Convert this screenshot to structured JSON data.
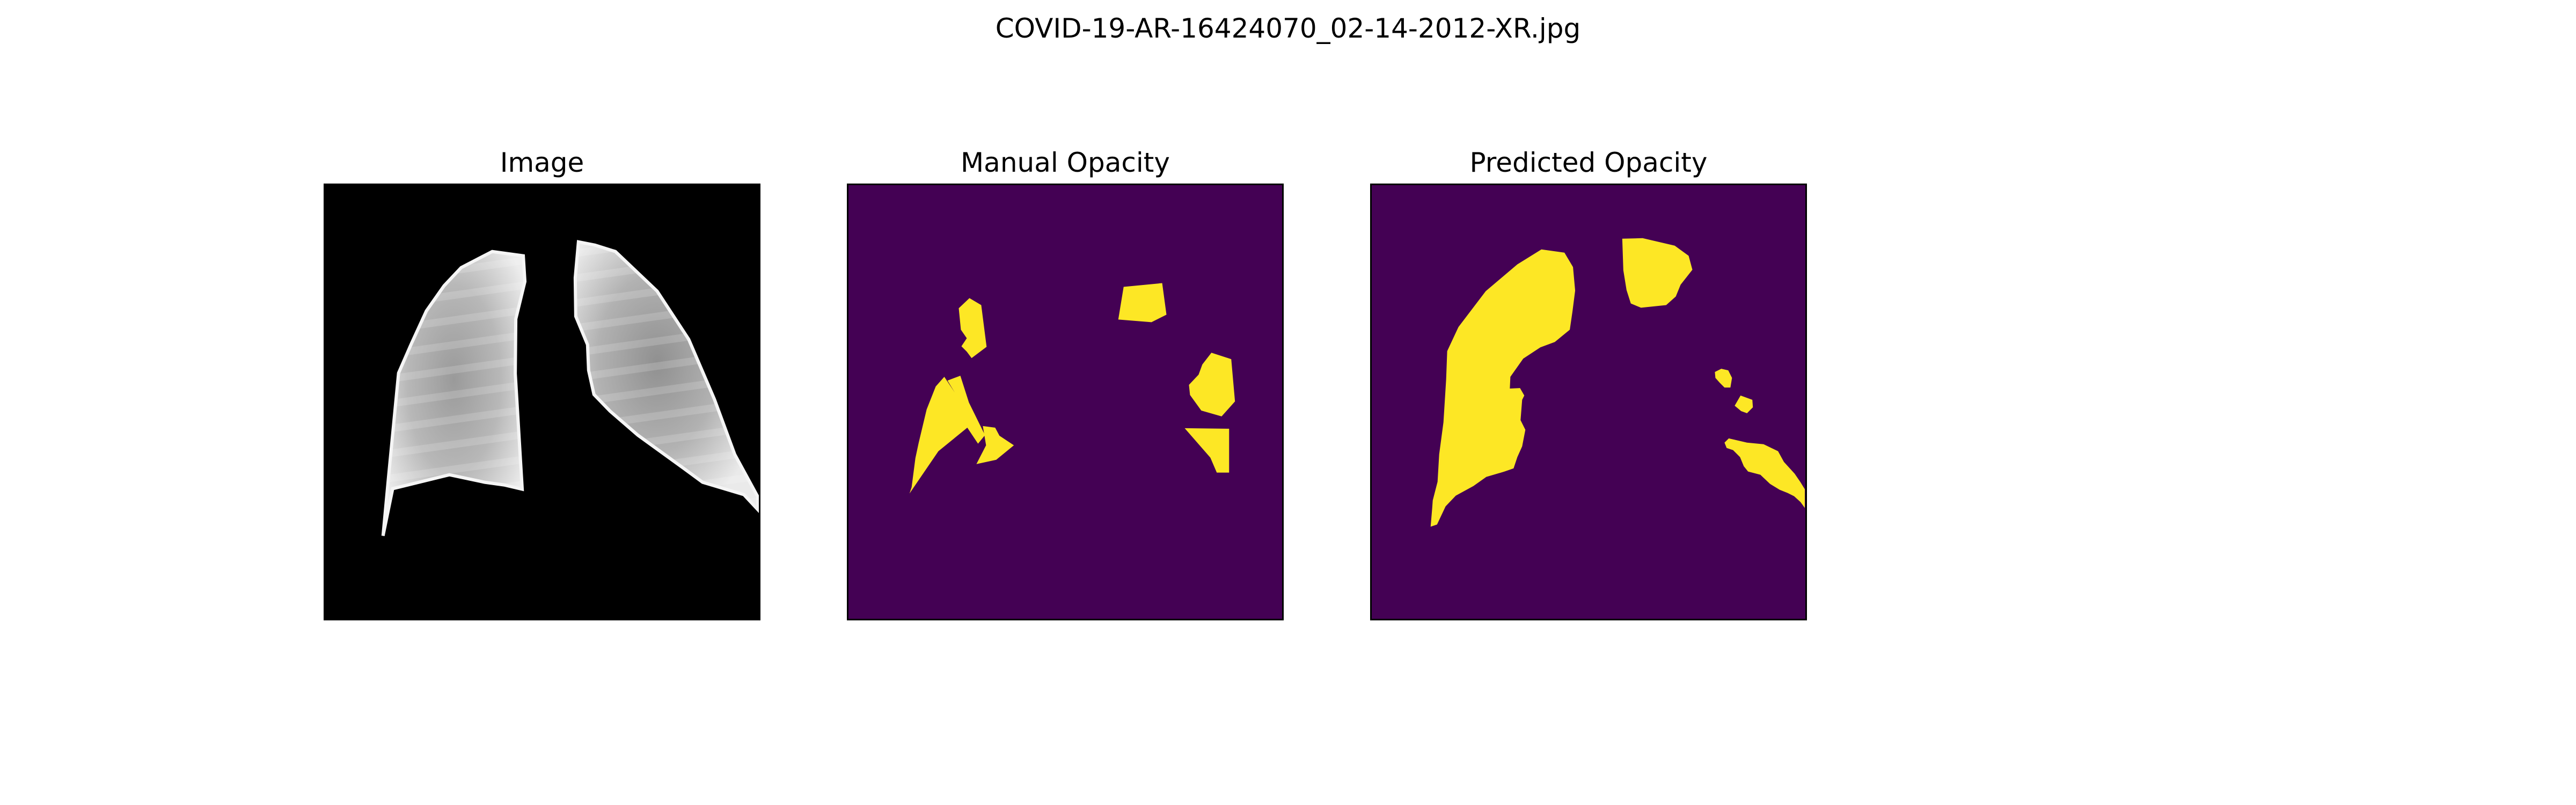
{
  "figure": {
    "title": "COVID-19-AR-16424070_02-14-2012-XR.jpg"
  },
  "panels": [
    {
      "title": "Image"
    },
    {
      "title": "Manual Opacity"
    },
    {
      "title": "Predicted Opacity"
    }
  ],
  "colors": {
    "background": "#ffffff",
    "xray_background": "#000000",
    "mask_background": "#440154",
    "mask_foreground": "#fde725",
    "lung_light": "#f2f2f2",
    "lung_dark": "#7a7a7a"
  }
}
